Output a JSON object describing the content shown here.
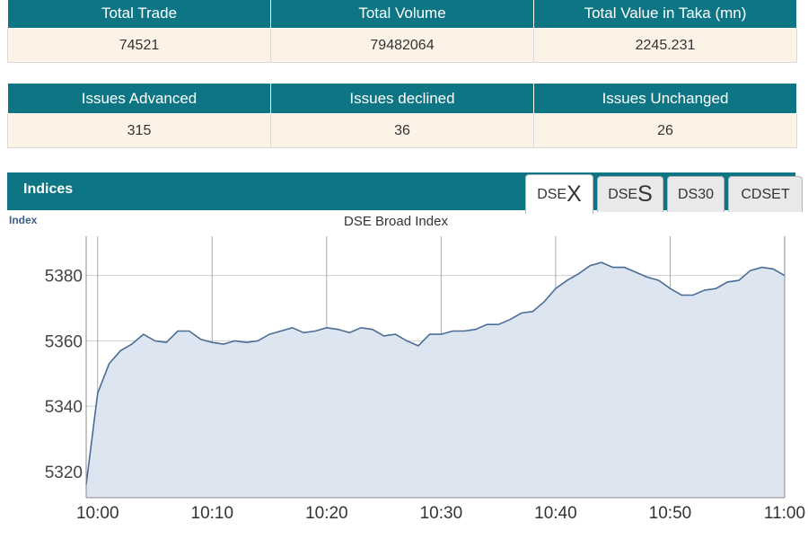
{
  "summary_top": {
    "headers": [
      "Total Trade",
      "Total Volume",
      "Total Value in Taka (mn)"
    ],
    "values": [
      "74521",
      "79482064",
      "2245.231"
    ]
  },
  "summary_issues": {
    "headers": [
      "Issues Advanced",
      "Issues declined",
      "Issues Unchanged"
    ],
    "values": [
      "315",
      "36",
      "26"
    ]
  },
  "indices": {
    "title": "Indices",
    "tabs": [
      {
        "prefix": "DSE",
        "suffix": "X",
        "active": true
      },
      {
        "prefix": "DSE",
        "suffix": "S",
        "active": false
      },
      {
        "prefix": "DS30",
        "suffix": "",
        "active": false
      },
      {
        "prefix": "CDSET",
        "suffix": "",
        "active": false
      }
    ]
  },
  "colors": {
    "header_bg": "#0e7585",
    "cell_bg": "#fdf2e6",
    "line": "#4a6d96",
    "fill": "#dce5f0"
  },
  "chart_data": {
    "type": "area",
    "title": "DSE Broad Index",
    "ylabel": "Index",
    "xlabel": "",
    "x_ticks": [
      "10:00",
      "10:10",
      "10:20",
      "10:30",
      "10:40",
      "10:50",
      "11:00"
    ],
    "y_ticks": [
      5320,
      5340,
      5360,
      5380
    ],
    "xlim": [
      -1,
      60
    ],
    "ylim": [
      5312,
      5392
    ],
    "grid": true,
    "series": [
      {
        "x": [
          -1,
          0,
          1,
          2,
          3,
          4,
          5,
          6,
          7,
          8,
          9,
          10,
          11,
          12,
          13,
          14,
          15,
          16,
          17,
          18,
          19,
          20,
          21,
          22,
          23,
          24,
          25,
          26,
          27,
          28,
          29,
          30,
          31,
          32,
          33,
          34,
          35,
          36,
          37,
          38,
          39,
          40,
          41,
          42,
          43,
          44,
          45,
          46,
          47,
          48,
          49,
          50,
          51,
          52,
          53,
          54,
          55,
          56,
          57,
          58,
          59,
          60
        ],
        "y": [
          5316,
          5344,
          5353,
          5357,
          5359,
          5362,
          5360,
          5359.5,
          5363,
          5363,
          5360.5,
          5359.5,
          5359,
          5360,
          5359.5,
          5360,
          5362,
          5363,
          5364,
          5362.5,
          5363,
          5364,
          5363.5,
          5362.5,
          5364,
          5363.5,
          5361.5,
          5362,
          5360,
          5358.5,
          5362,
          5362,
          5363,
          5363,
          5363.5,
          5365,
          5365,
          5366.5,
          5368.5,
          5369,
          5372,
          5376,
          5378.5,
          5380.5,
          5383,
          5384,
          5382.5,
          5382.5,
          5381,
          5379.5,
          5378.5,
          5376,
          5374,
          5374,
          5375.5,
          5376,
          5378,
          5378.5,
          5381.5,
          5382.5,
          5382,
          5380
        ]
      }
    ]
  }
}
